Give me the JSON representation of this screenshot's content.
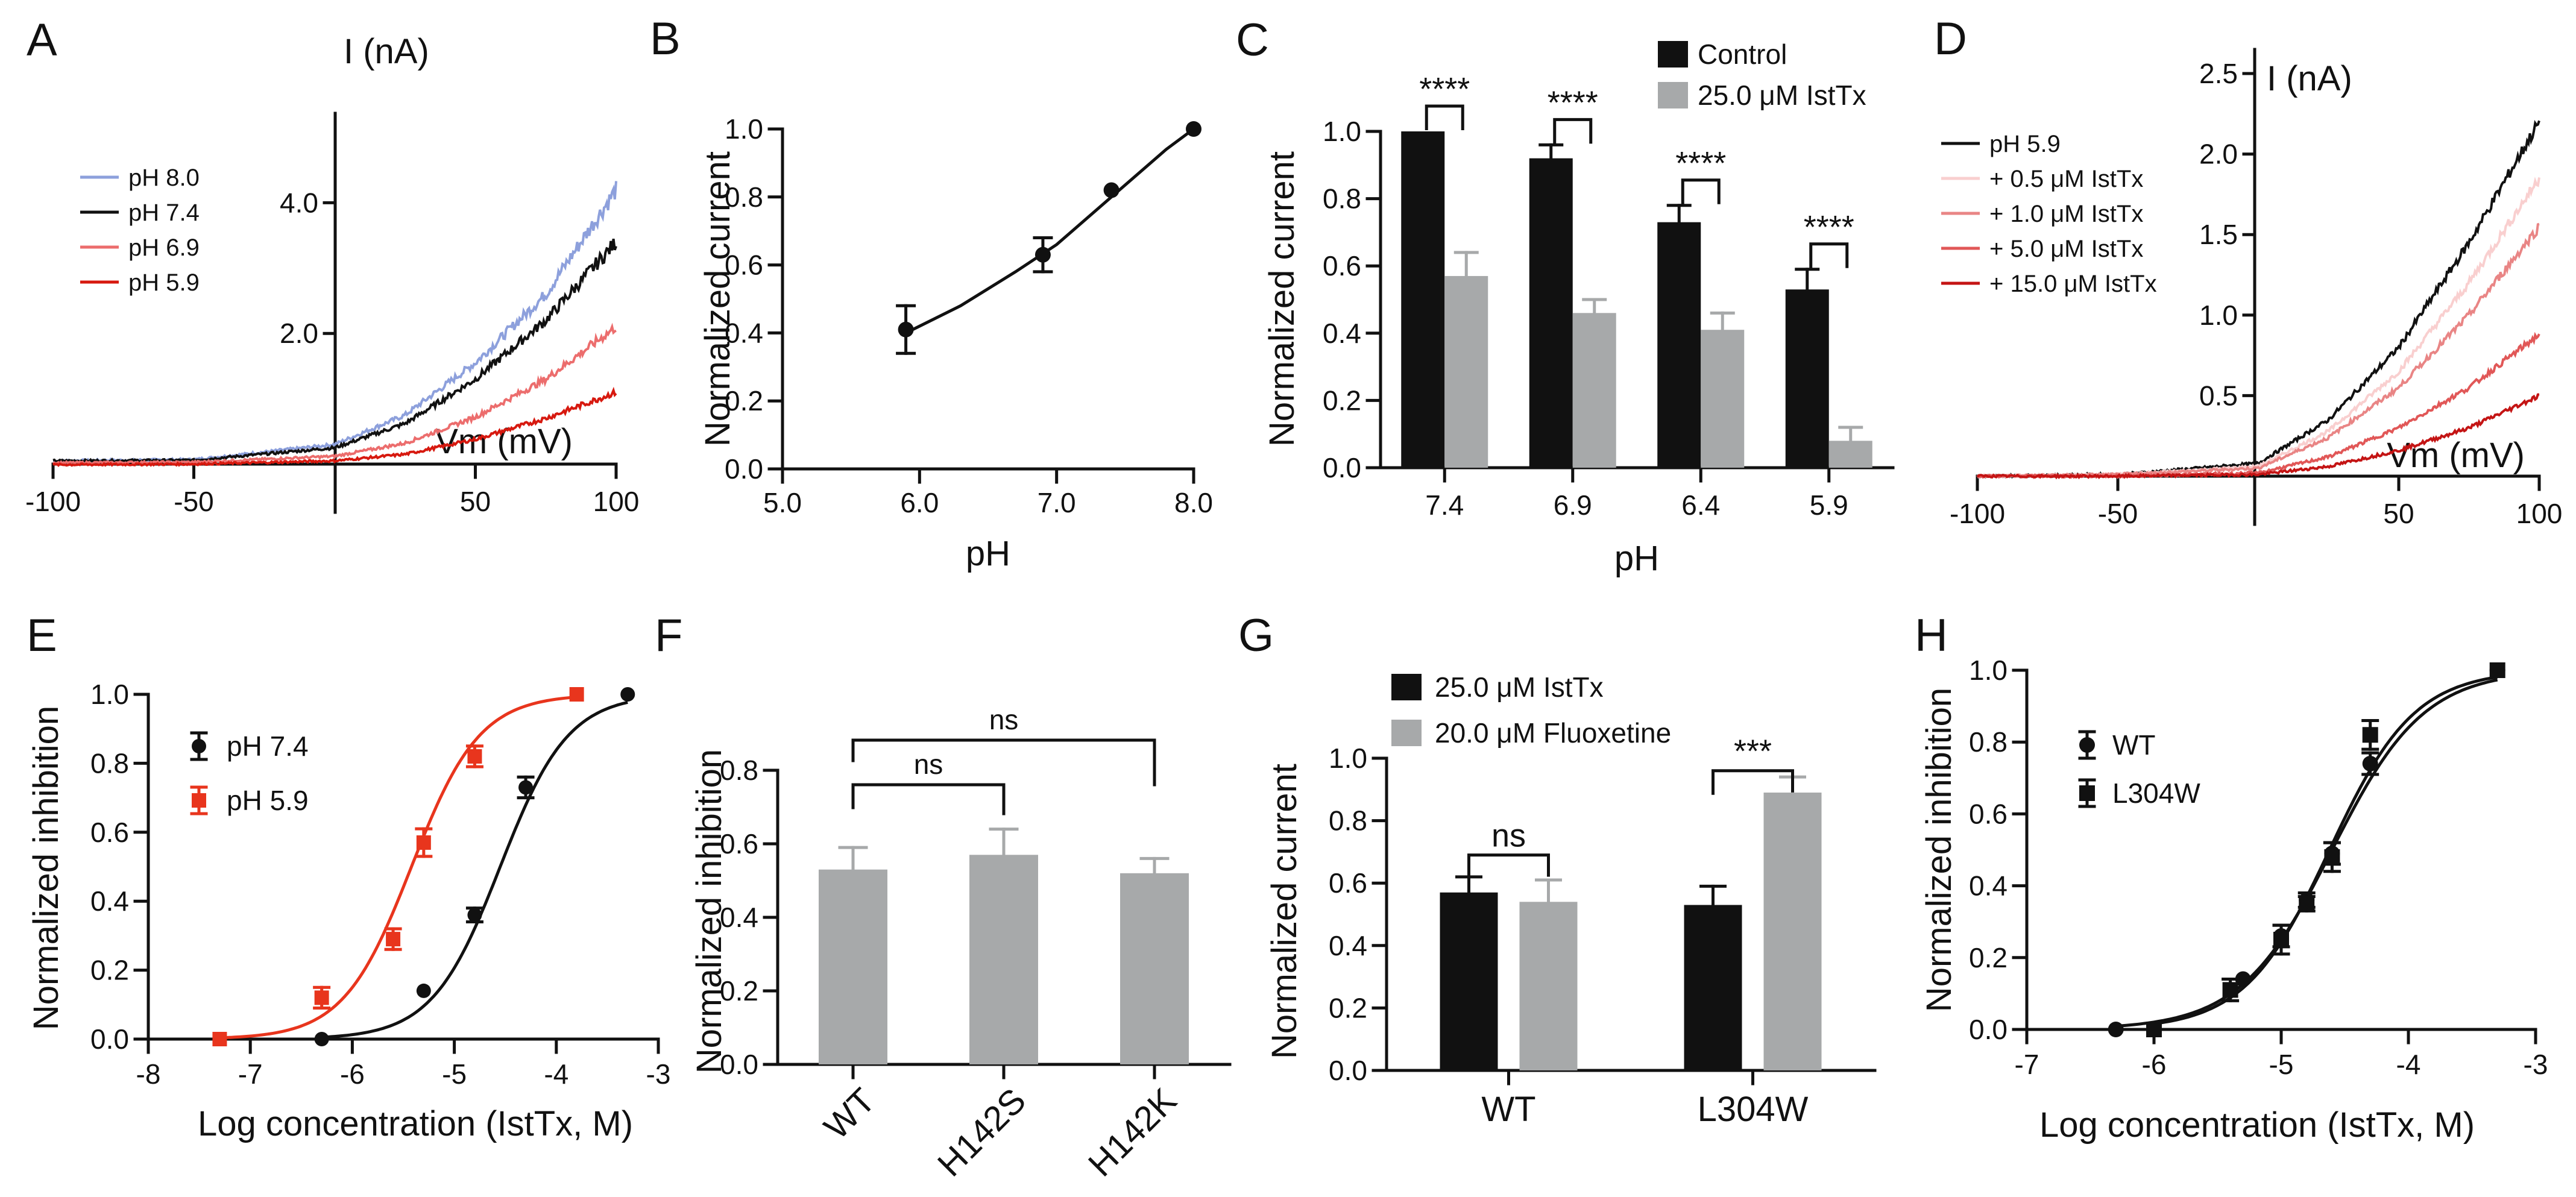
{
  "colors": {
    "black": "#111111",
    "gray": "#a7a9aa",
    "red": "#d7190f",
    "red_e": "#e8351d",
    "blue": "#8da0dc",
    "red_mid": "#ec6d6d",
    "red_light": "#f5b4b4",
    "red_pale": "#f9cfcf",
    "red_m2": "#e98585",
    "red_m3": "#e15757",
    "red_dark": "#c41414"
  },
  "chart_data": [
    {
      "panel": "A",
      "type": "line",
      "ylabel": "I (nA)",
      "xlabel": "Vm (mV)",
      "xlim": [
        -100,
        100
      ],
      "ylim": [
        -0.5,
        5.0
      ],
      "xticks": [
        "-100",
        "-50",
        "50",
        "100"
      ],
      "yticks": [
        "2.0",
        "4.0"
      ],
      "series": [
        {
          "name": "pH 8.0",
          "color": "#8da0dc",
          "x": [
            -100,
            -50,
            0,
            25,
            50,
            75,
            100
          ],
          "values": [
            0.05,
            0.07,
            0.3,
            0.75,
            1.55,
            2.6,
            4.2
          ]
        },
        {
          "name": "pH 7.4",
          "color": "#111111",
          "x": [
            -100,
            -50,
            0,
            25,
            50,
            75,
            100
          ],
          "values": [
            0.05,
            0.06,
            0.25,
            0.62,
            1.3,
            2.2,
            3.4
          ]
        },
        {
          "name": "pH 6.9",
          "color": "#ec6d6d",
          "x": [
            -100,
            -50,
            0,
            25,
            50,
            75,
            100
          ],
          "values": [
            0.02,
            0.03,
            0.12,
            0.32,
            0.72,
            1.3,
            2.1
          ]
        },
        {
          "name": "pH 5.9",
          "color": "#d7190f",
          "x": [
            -100,
            -50,
            0,
            25,
            50,
            75,
            100
          ],
          "values": [
            -0.01,
            0.0,
            0.05,
            0.15,
            0.38,
            0.7,
            1.1
          ]
        }
      ]
    },
    {
      "panel": "B",
      "type": "scatter",
      "xlabel": "pH",
      "ylabel": "Normalized current",
      "xlim": [
        5.0,
        8.0
      ],
      "ylim": [
        0.0,
        1.0
      ],
      "xticks": [
        "5.0",
        "6.0",
        "7.0",
        "8.0"
      ],
      "yticks": [
        "0.0",
        "0.2",
        "0.4",
        "0.6",
        "0.8",
        "1.0"
      ],
      "x": [
        5.9,
        6.9,
        7.4,
        8.0
      ],
      "values": [
        0.41,
        0.63,
        0.82,
        1.0
      ],
      "errors": [
        0.07,
        0.05,
        0.0,
        0.0
      ],
      "fit": {
        "x": [
          5.9,
          6.3,
          6.7,
          7.0,
          7.4,
          7.8,
          8.0
        ],
        "values": [
          0.4,
          0.48,
          0.58,
          0.66,
          0.8,
          0.94,
          1.0
        ]
      }
    },
    {
      "panel": "C",
      "type": "bar",
      "xlabel": "pH",
      "ylabel": "Normalized current",
      "categories": [
        "7.4",
        "6.9",
        "6.4",
        "5.9"
      ],
      "ylim": [
        0.0,
        1.0
      ],
      "yticks": [
        "0.0",
        "0.2",
        "0.4",
        "0.6",
        "0.8",
        "1.0"
      ],
      "series": [
        {
          "name": "Control",
          "color": "#111111",
          "values": [
            1.0,
            0.92,
            0.73,
            0.53
          ],
          "errors": [
            0.0,
            0.04,
            0.05,
            0.06
          ]
        },
        {
          "name": "25.0 μM IstTx",
          "color": "#a7a9aa",
          "values": [
            0.57,
            0.46,
            0.41,
            0.08
          ],
          "errors": [
            0.07,
            0.04,
            0.05,
            0.04
          ]
        }
      ],
      "annotations": [
        "****",
        "****",
        "****",
        "****"
      ]
    },
    {
      "panel": "D",
      "type": "line",
      "ylabel": "I (nA)",
      "xlabel": "Vm (mV)",
      "xlim": [
        -100,
        100
      ],
      "ylim": [
        -0.2,
        2.5
      ],
      "xticks": [
        "-100",
        "-50",
        "50",
        "100"
      ],
      "yticks": [
        "0.5",
        "1.0",
        "1.5",
        "2.0",
        "2.5"
      ],
      "series": [
        {
          "name": "pH 5.9",
          "color": "#111111",
          "x": [
            -100,
            -50,
            0,
            25,
            50,
            75,
            100
          ],
          "values": [
            0.0,
            0.01,
            0.08,
            0.35,
            0.8,
            1.45,
            2.2
          ]
        },
        {
          "name": "+ 0.5 μM IstTx",
          "color": "#f9cfcf",
          "x": [
            -100,
            -50,
            0,
            25,
            50,
            75,
            100
          ],
          "values": [
            0.0,
            0.01,
            0.06,
            0.28,
            0.65,
            1.2,
            1.85
          ]
        },
        {
          "name": "+ 1.0 μM IstTx",
          "color": "#e98585",
          "x": [
            -100,
            -50,
            0,
            25,
            50,
            75,
            100
          ],
          "values": [
            0.0,
            0.01,
            0.05,
            0.24,
            0.55,
            1.0,
            1.55
          ]
        },
        {
          "name": "+ 5.0 μM IstTx",
          "color": "#e15757",
          "x": [
            -100,
            -50,
            0,
            25,
            50,
            75,
            100
          ],
          "values": [
            0.0,
            0.0,
            0.02,
            0.12,
            0.3,
            0.55,
            0.88
          ]
        },
        {
          "name": "+ 15.0 μM IstTx",
          "color": "#c41414",
          "x": [
            -100,
            -50,
            0,
            25,
            50,
            75,
            100
          ],
          "values": [
            0.0,
            0.0,
            0.01,
            0.06,
            0.16,
            0.3,
            0.5
          ]
        }
      ]
    },
    {
      "panel": "E",
      "type": "scatter",
      "xlabel": "Log concentration (IstTx, M)",
      "ylabel": "Normalized inhibition",
      "xlim": [
        -8,
        -3
      ],
      "ylim": [
        0.0,
        1.0
      ],
      "xticks": [
        "-8",
        "-7",
        "-6",
        "-5",
        "-4",
        "-3"
      ],
      "yticks": [
        "0.0",
        "0.2",
        "0.4",
        "0.6",
        "0.8",
        "1.0"
      ],
      "series": [
        {
          "name": "pH 7.4",
          "color": "#111111",
          "marker": "circle",
          "x": [
            -6.3,
            -5.3,
            -4.8,
            -4.3,
            -3.3
          ],
          "values": [
            0.0,
            0.14,
            0.36,
            0.73,
            1.0
          ],
          "errors": [
            0.0,
            0.0,
            0.02,
            0.03,
            0.0
          ],
          "fit": {
            "logEC50": -4.55,
            "hill": 1.3
          }
        },
        {
          "name": "pH 5.9",
          "color": "#e8351d",
          "marker": "square",
          "x": [
            -7.3,
            -6.3,
            -5.6,
            -5.3,
            -4.8,
            -3.8
          ],
          "values": [
            0.0,
            0.12,
            0.29,
            0.57,
            0.82,
            1.0
          ],
          "errors": [
            0.0,
            0.03,
            0.03,
            0.04,
            0.03,
            0.0
          ],
          "fit": {
            "logEC50": -5.42,
            "hill": 1.3
          }
        }
      ]
    },
    {
      "panel": "F",
      "type": "bar",
      "ylabel": "Normalized inhibition",
      "categories": [
        "WT",
        "H142S",
        "H142K"
      ],
      "ylim": [
        0.0,
        0.8
      ],
      "yticks": [
        "0.0",
        "0.2",
        "0.4",
        "0.6",
        "0.8"
      ],
      "values": [
        0.53,
        0.57,
        0.52
      ],
      "errors": [
        0.06,
        0.07,
        0.04
      ],
      "color": "#a7a9aa",
      "annotations": [
        "ns",
        "ns"
      ]
    },
    {
      "panel": "G",
      "type": "bar",
      "ylabel": "Normalized current",
      "categories": [
        "WT",
        "L304W"
      ],
      "ylim": [
        0.0,
        1.0
      ],
      "yticks": [
        "0.0",
        "0.2",
        "0.4",
        "0.6",
        "0.8",
        "1.0"
      ],
      "series": [
        {
          "name": "25.0 μM IstTx",
          "color": "#111111",
          "values": [
            0.57,
            0.53
          ],
          "errors": [
            0.05,
            0.06
          ]
        },
        {
          "name": "20.0 μM Fluoxetine",
          "color": "#a7a9aa",
          "values": [
            0.54,
            0.89
          ],
          "errors": [
            0.07,
            0.05
          ]
        }
      ],
      "annotations": [
        "ns",
        "***"
      ]
    },
    {
      "panel": "H",
      "type": "scatter",
      "xlabel": "Log concentration (IstTx, M)",
      "ylabel": "Normalized inhibition",
      "xlim": [
        -7,
        -3
      ],
      "ylim": [
        0.0,
        1.0
      ],
      "xticks": [
        "-7",
        "-6",
        "-5",
        "-4",
        "-3"
      ],
      "yticks": [
        "0.0",
        "0.2",
        "0.4",
        "0.6",
        "0.8",
        "1.0"
      ],
      "series": [
        {
          "name": "WT",
          "color": "#111111",
          "marker": "circle",
          "x": [
            -6.3,
            -5.3,
            -5.0,
            -4.8,
            -4.6,
            -4.3,
            -3.3
          ],
          "values": [
            0.0,
            0.14,
            0.26,
            0.36,
            0.49,
            0.74,
            1.0
          ],
          "errors": [
            0.0,
            0.0,
            0.03,
            0.02,
            0.03,
            0.03,
            0.0
          ],
          "fit": {
            "logEC50": -4.6,
            "hill": 1.2
          }
        },
        {
          "name": "L304W",
          "color": "#111111",
          "marker": "square",
          "x": [
            -6.0,
            -5.4,
            -5.0,
            -4.8,
            -4.6,
            -4.3,
            -3.3
          ],
          "values": [
            0.0,
            0.11,
            0.25,
            0.35,
            0.48,
            0.82,
            1.0
          ],
          "errors": [
            0.0,
            0.03,
            0.04,
            0.02,
            0.04,
            0.04,
            0.0
          ],
          "fit": {
            "logEC50": -4.62,
            "hill": 1.3
          }
        }
      ]
    }
  ]
}
